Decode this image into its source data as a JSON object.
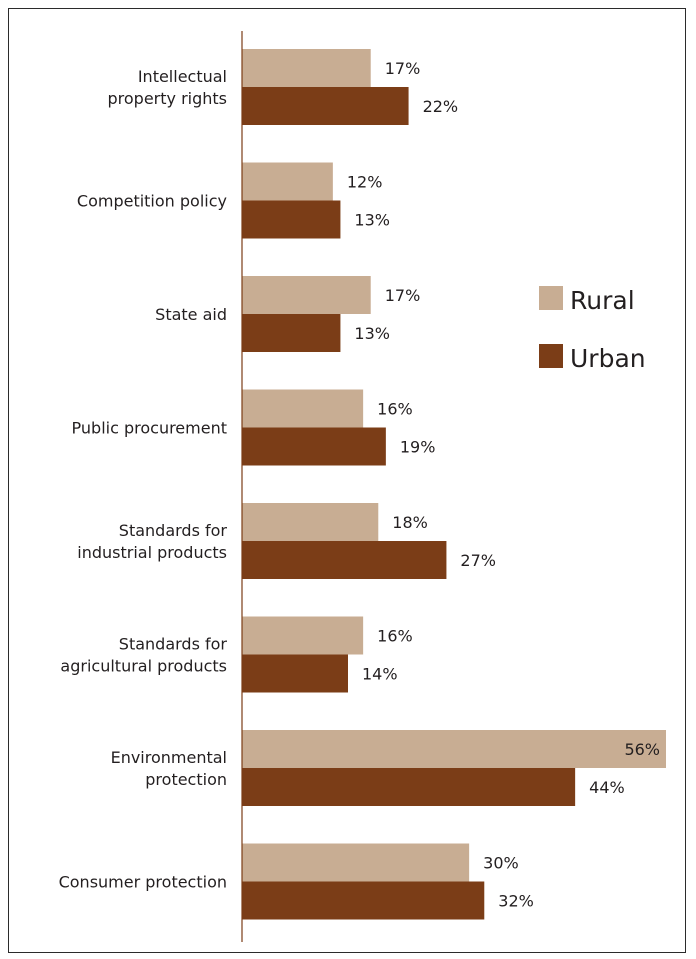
{
  "chart_data": {
    "type": "bar",
    "orientation": "horizontal",
    "categories": [
      [
        "Intellectual",
        "property rights"
      ],
      [
        "Competition policy"
      ],
      [
        "State aid"
      ],
      [
        "Public procurement"
      ],
      [
        "Standards for",
        "industrial products"
      ],
      [
        "Standards for",
        "agricultural products"
      ],
      [
        "Environmental",
        "protection"
      ],
      [
        "Consumer protection"
      ]
    ],
    "series": [
      {
        "name": "Rural",
        "color": "#c8ad93",
        "values": [
          17,
          12,
          17,
          16,
          18,
          16,
          56,
          30
        ]
      },
      {
        "name": "Urban",
        "color": "#7b3d17",
        "values": [
          22,
          13,
          13,
          19,
          27,
          14,
          44,
          32
        ]
      }
    ],
    "value_suffix": "%",
    "xlim": [
      0,
      56
    ],
    "axis_color": "#7b3d17",
    "legend_position": "right",
    "grid": false
  }
}
